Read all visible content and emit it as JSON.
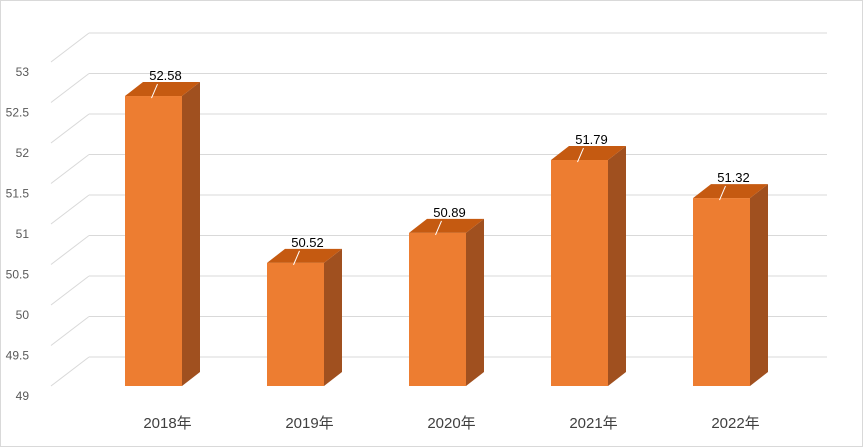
{
  "chart_data": {
    "type": "bar",
    "style": "3d-column",
    "categories": [
      "2018年",
      "2019年",
      "2020年",
      "2021年",
      "2022年"
    ],
    "values": [
      52.58,
      50.52,
      50.89,
      51.79,
      51.32
    ],
    "data_labels": [
      "52.58",
      "50.52",
      "50.89",
      "51.79",
      "51.32"
    ],
    "y_ticks": [
      "49",
      "49.5",
      "50",
      "50.5",
      "51",
      "51.5",
      "52",
      "52.5",
      "53"
    ],
    "ylim": [
      49,
      53
    ],
    "title": "",
    "xlabel": "",
    "ylabel": "",
    "grid": true,
    "legend": "none",
    "colors": {
      "bar_front": "#ed7d31",
      "bar_top": "#c55a11",
      "bar_side": "#a0501f",
      "gridline": "#d9d9d9",
      "axis_text": "#595959"
    }
  }
}
